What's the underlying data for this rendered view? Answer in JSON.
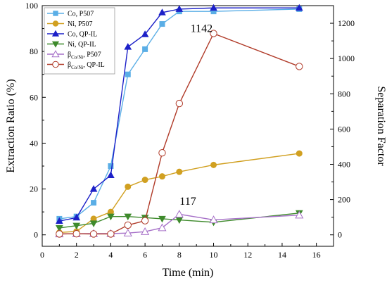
{
  "chart_data": {
    "type": "line",
    "xlabel": "Time (min)",
    "ylabel_left": "Extraction Ratio (%)",
    "ylabel_right": "Separation Factor",
    "xlim": [
      0,
      17
    ],
    "x_ticks": [
      0,
      2,
      4,
      6,
      8,
      10,
      12,
      14,
      16
    ],
    "ylim_left": [
      -5,
      100
    ],
    "y_ticks_left": [
      0,
      20,
      40,
      60,
      80,
      100
    ],
    "ylim_right": [
      -65,
      1300
    ],
    "y_ticks_right": [
      0,
      200,
      400,
      600,
      800,
      1000,
      1200
    ],
    "legend_position": "top-left",
    "series": [
      {
        "name": "Co, P507",
        "axis": "left",
        "marker": "square",
        "filled": true,
        "color": "#5aaee6",
        "x": [
          1,
          2,
          3,
          4,
          5,
          6,
          7,
          8,
          10,
          15
        ],
        "y": [
          7,
          8,
          14,
          30,
          70,
          81,
          92,
          97.5,
          97.5,
          98.5
        ]
      },
      {
        "name": "Ni, P507",
        "axis": "left",
        "marker": "circle",
        "filled": true,
        "color": "#d1a021",
        "x": [
          1,
          2,
          3,
          4,
          5,
          6,
          7,
          8,
          10,
          15
        ],
        "y": [
          1,
          1.5,
          7,
          10,
          21,
          24,
          25.5,
          27.5,
          30.5,
          35.5
        ]
      },
      {
        "name": "Co, QP-IL",
        "axis": "left",
        "marker": "triangle-up",
        "filled": true,
        "color": "#1c20c8",
        "x": [
          1,
          2,
          3,
          4,
          5,
          6,
          7,
          8,
          10,
          15
        ],
        "y": [
          6,
          7.5,
          20,
          26,
          82,
          87.5,
          97,
          98.5,
          99,
          99
        ]
      },
      {
        "name": "Ni, QP-IL",
        "axis": "left",
        "marker": "triangle-down",
        "filled": true,
        "color": "#3e8a2c",
        "x": [
          1,
          2,
          3,
          4,
          5,
          6,
          7,
          8,
          10,
          15
        ],
        "y": [
          3,
          4,
          5,
          8,
          8,
          7.5,
          7,
          6.5,
          5.5,
          9.5
        ]
      },
      {
        "name": "β_Co/Ni, P507",
        "label_main": "β",
        "label_sub": "Co/Ni",
        "label_tail": ", P507",
        "axis": "right",
        "marker": "triangle-up",
        "filled": false,
        "color": "#a670c8",
        "x": [
          1,
          2,
          3,
          4,
          5,
          6,
          7,
          8,
          10,
          15
        ],
        "y": [
          5,
          6,
          7,
          7,
          10,
          18,
          40,
          117,
          85,
          112
        ]
      },
      {
        "name": "β_Co/Ni, QP-IL",
        "label_main": "β",
        "label_sub": "Co/Ni",
        "label_tail": ", QP-IL",
        "axis": "right",
        "marker": "circle",
        "filled": false,
        "color": "#b03a28",
        "x": [
          1,
          2,
          3,
          4,
          5,
          6,
          7,
          8,
          10,
          15
        ],
        "y": [
          5,
          6,
          5,
          5,
          55,
          80,
          465,
          745,
          1142,
          955
        ]
      }
    ],
    "annotations": [
      {
        "text": "1142",
        "x": 9.3,
        "y_right": 1150
      },
      {
        "text": "117",
        "x": 8.5,
        "y_right": 170
      }
    ]
  }
}
